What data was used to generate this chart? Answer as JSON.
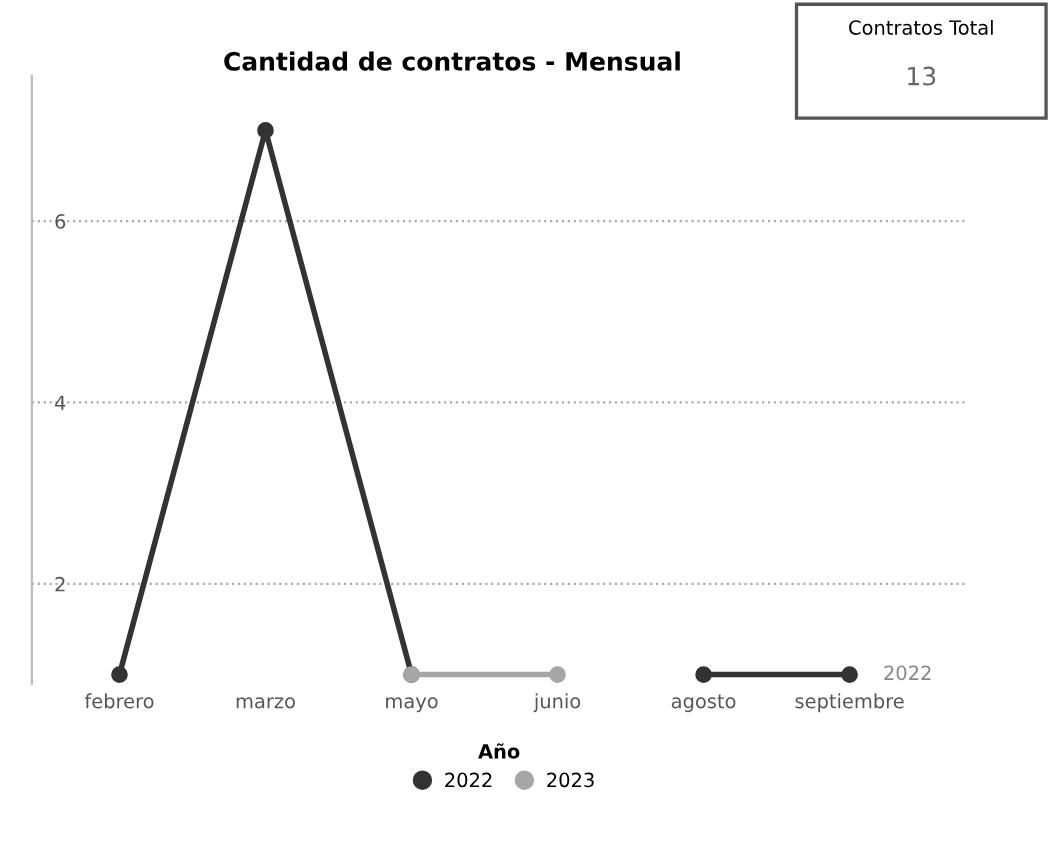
{
  "chart_data": [
    {
      "type": "line",
      "title": "Cantidad de contratos - Mensual",
      "categories": [
        "febrero",
        "marzo",
        "mayo",
        "junio",
        "agosto",
        "septiembre"
      ],
      "series": [
        {
          "name": "2022",
          "color": "#333333",
          "values": [
            1,
            7,
            1,
            null,
            1,
            1
          ]
        },
        {
          "name": "2023",
          "color": "#a6a6a6",
          "values": [
            null,
            null,
            1,
            1,
            null,
            null
          ]
        }
      ],
      "ylim": [
        0.9,
        7.6
      ],
      "yticks": [
        2,
        4,
        6
      ],
      "grid": "y",
      "marker": "circle",
      "line_style": "solid",
      "legend": "bottom",
      "legend_title": "Año",
      "annotations": [
        {
          "text": "2022",
          "x": "septiembre",
          "y": 1
        }
      ]
    },
    {
      "type": "other",
      "title": "Contratos Total",
      "annotations": [
        "13"
      ]
    }
  ]
}
